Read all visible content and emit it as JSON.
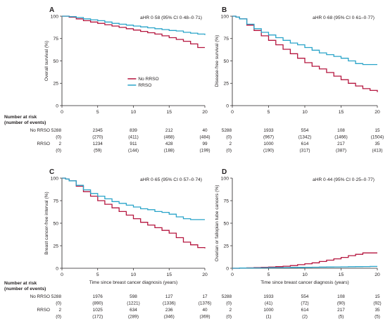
{
  "colors": {
    "no_rrso": "#b5163f",
    "rrso": "#2aa4c9",
    "axis": "#231f20"
  },
  "number_at_risk_header": [
    "Number at risk",
    "(number of events)"
  ],
  "chart_data": [
    {
      "panel": "A",
      "type": "line",
      "hr_text": "aHR 0·58 (95% CI 0·48–0·71)",
      "ylabel": "Overall survival (%)",
      "xlabel": "",
      "xlim": [
        0,
        20
      ],
      "ylim": [
        0,
        100
      ],
      "xticks": [
        0,
        5,
        10,
        15,
        20
      ],
      "yticks": [
        0,
        25,
        50,
        75,
        100
      ],
      "legend": [
        "No RRSO",
        "RRSO"
      ],
      "legend_position": "lower-middle",
      "series": [
        {
          "name": "No RRSO",
          "x": [
            0,
            1,
            2,
            3,
            4,
            5,
            6,
            7,
            8,
            9,
            10,
            11,
            12,
            13,
            14,
            15,
            16,
            17,
            18,
            19,
            20
          ],
          "y": [
            100,
            99,
            97,
            95,
            93.5,
            92,
            90.5,
            89,
            87.5,
            86,
            84.5,
            83,
            81.5,
            80,
            78,
            76,
            74,
            72,
            69,
            65,
            65
          ]
        },
        {
          "name": "RRSO",
          "x": [
            0,
            1,
            2,
            3,
            4,
            5,
            6,
            7,
            8,
            9,
            10,
            11,
            12,
            13,
            14,
            15,
            16,
            17,
            18,
            19,
            20
          ],
          "y": [
            100,
            99.5,
            98.5,
            97,
            96,
            95,
            93.5,
            92,
            91,
            90,
            89,
            88,
            87,
            86,
            85,
            84,
            83.5,
            82,
            81,
            80,
            79
          ]
        }
      ],
      "risk_table": {
        "labels": [
          "No RRSO",
          "",
          "RRSO",
          ""
        ],
        "rows": [
          [
            "5288",
            "2345",
            "839",
            "212",
            "40"
          ],
          [
            "(0)",
            "(270)",
            "(411)",
            "(468)",
            "(484)"
          ],
          [
            "2",
            "1234",
            "911",
            "428",
            "99"
          ],
          [
            "(0)",
            "(59)",
            "(144)",
            "(188)",
            "(199)"
          ]
        ]
      }
    },
    {
      "panel": "B",
      "type": "line",
      "hr_text": "aHR 0·68 (95% CI 0·61–0·77)",
      "ylabel": "Disease-free survival (%)",
      "xlabel": "",
      "xlim": [
        0,
        20
      ],
      "ylim": [
        0,
        100
      ],
      "xticks": [
        0,
        5,
        10,
        15,
        20
      ],
      "yticks": [
        0,
        25,
        50,
        75,
        100
      ],
      "legend": [],
      "series": [
        {
          "name": "No RRSO",
          "x": [
            0,
            0.5,
            1,
            2,
            3,
            4,
            5,
            6,
            7,
            8,
            9,
            10,
            11,
            12,
            13,
            14,
            15,
            16,
            17,
            18,
            19,
            20
          ],
          "y": [
            100,
            99,
            97,
            90,
            84,
            78,
            73,
            68,
            63,
            58,
            53,
            48,
            44,
            41,
            37,
            33,
            29,
            25,
            22,
            19,
            17,
            15
          ]
        },
        {
          "name": "RRSO",
          "x": [
            0,
            0.5,
            1,
            2,
            3,
            4,
            5,
            6,
            7,
            8,
            9,
            10,
            11,
            12,
            13,
            14,
            15,
            16,
            17,
            18,
            19,
            20
          ],
          "y": [
            100,
            99,
            97,
            91,
            86,
            82,
            79,
            76,
            73,
            70,
            68,
            65,
            62,
            59,
            57,
            55,
            53,
            50,
            47,
            46,
            46,
            46
          ]
        }
      ],
      "risk_table": {
        "labels": [
          "",
          "",
          "",
          ""
        ],
        "rows": [
          [
            "5288",
            "1933",
            "554",
            "108",
            "15"
          ],
          [
            "(0)",
            "(967)",
            "(1342)",
            "(1466)",
            "(1504)"
          ],
          [
            "2",
            "1000",
            "614",
            "217",
            "35"
          ],
          [
            "(0)",
            "(190)",
            "(317)",
            "(387)",
            "(413)"
          ]
        ]
      }
    },
    {
      "panel": "C",
      "type": "line",
      "hr_text": "aHR 0·65 (95% CI 0·57–0·74)",
      "ylabel": "Breast cancer-free interval (%)",
      "xlabel": "Time since breast cancer diagnosis (years)",
      "xlim": [
        0,
        20
      ],
      "ylim": [
        0,
        100
      ],
      "xticks": [
        0,
        5,
        10,
        15,
        20
      ],
      "yticks": [
        0,
        25,
        50,
        75,
        100
      ],
      "legend": [],
      "series": [
        {
          "name": "No RRSO",
          "x": [
            0,
            0.5,
            1,
            2,
            3,
            4,
            5,
            6,
            7,
            8,
            9,
            10,
            11,
            12,
            13,
            14,
            15,
            16,
            17,
            18,
            19,
            20
          ],
          "y": [
            100,
            99,
            97,
            91,
            85,
            80,
            75,
            71,
            67,
            63,
            59,
            55,
            51,
            48,
            45,
            42,
            39,
            34,
            29,
            26,
            23,
            22
          ]
        },
        {
          "name": "RRSO",
          "x": [
            0,
            0.5,
            1,
            2,
            3,
            4,
            5,
            6,
            7,
            8,
            9,
            10,
            11,
            12,
            13,
            14,
            15,
            16,
            17,
            18,
            19,
            20
          ],
          "y": [
            100,
            99,
            97,
            92,
            87,
            83,
            80,
            77,
            74,
            72,
            70,
            68,
            66,
            65,
            63,
            62,
            60,
            57,
            55,
            54,
            54,
            54
          ]
        }
      ],
      "risk_table": {
        "labels": [
          "No RRSO",
          "",
          "RRSO",
          ""
        ],
        "rows": [
          [
            "5288",
            "1976",
            "598",
            "127",
            "17"
          ],
          [
            "(0)",
            "(890)",
            "(1221)",
            "(1336)",
            "(1376)"
          ],
          [
            "2",
            "1025",
            "634",
            "236",
            "40"
          ],
          [
            "(0)",
            "(172)",
            "(289)",
            "(346)",
            "(369)"
          ]
        ]
      }
    },
    {
      "panel": "D",
      "type": "line",
      "hr_text": "aHR 0·44 (95% CI 0·25–0·77)",
      "ylabel": "Ovarian or fallopian tube cancers (%)",
      "xlabel": "Time since breast cancer diagnosis (years)",
      "xlim": [
        0,
        20
      ],
      "ylim": [
        0,
        100
      ],
      "xticks": [
        0,
        5,
        10,
        15,
        20
      ],
      "yticks": [
        0,
        25,
        50,
        75,
        100
      ],
      "legend": [],
      "series": [
        {
          "name": "No RRSO",
          "x": [
            0,
            1,
            2,
            3,
            4,
            5,
            6,
            7,
            8,
            9,
            10,
            11,
            12,
            13,
            14,
            15,
            16,
            17,
            18,
            19,
            20
          ],
          "y": [
            0,
            0.3,
            0.5,
            0.8,
            1,
            1.3,
            1.8,
            2.3,
            3,
            4,
            5,
            6,
            7.5,
            9,
            10.5,
            12,
            14,
            15.5,
            17,
            17,
            17
          ]
        },
        {
          "name": "RRSO",
          "x": [
            0,
            1,
            2,
            3,
            4,
            5,
            6,
            7,
            8,
            9,
            10,
            11,
            12,
            13,
            14,
            15,
            16,
            17,
            18,
            19,
            20
          ],
          "y": [
            0,
            0.2,
            0.3,
            0.4,
            0.5,
            0.6,
            0.7,
            0.8,
            0.9,
            1,
            1.1,
            1.2,
            1.3,
            1.4,
            1.5,
            1.6,
            1.7,
            1.8,
            1.9,
            2,
            2
          ]
        }
      ],
      "risk_table": {
        "labels": [
          "",
          "",
          "",
          ""
        ],
        "rows": [
          [
            "5288",
            "1933",
            "554",
            "108",
            "15"
          ],
          [
            "(0)",
            "(41)",
            "(72)",
            "(90)",
            "(92)"
          ],
          [
            "2",
            "1000",
            "614",
            "217",
            "35"
          ],
          [
            "(0)",
            "(1)",
            "(2)",
            "(5)",
            "(5)"
          ]
        ]
      }
    }
  ]
}
